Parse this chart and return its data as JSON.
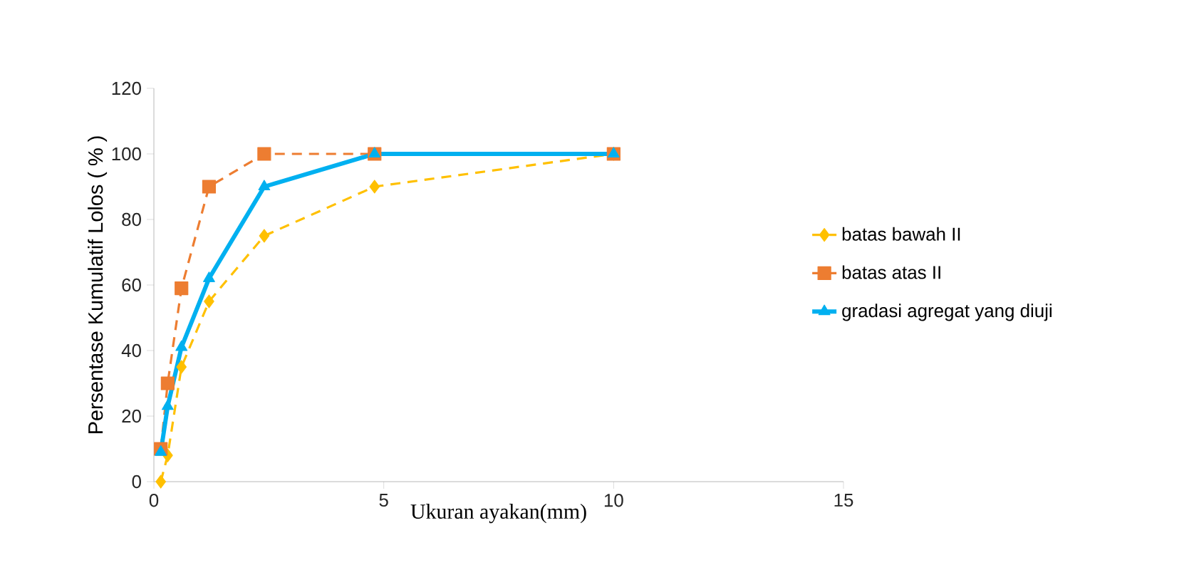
{
  "chart_data": {
    "type": "line",
    "xlabel": "Ukuran ayakan(mm)",
    "ylabel": "Persentase Kumulatif Lolos ( % )",
    "xlim": [
      0,
      15
    ],
    "xticks": [
      0,
      5,
      10,
      15
    ],
    "ylim": [
      0,
      120
    ],
    "yticks": [
      0,
      20,
      40,
      60,
      80,
      100,
      120
    ],
    "grid": false,
    "legend": "right",
    "series": [
      {
        "name": "batas bawah II",
        "color": "#ffc000",
        "marker": "diamond",
        "line_style": "dashed",
        "x": [
          0.15,
          0.3,
          0.6,
          1.2,
          2.4,
          4.8,
          10
        ],
        "values": [
          0,
          8,
          35,
          55,
          75,
          90,
          100
        ]
      },
      {
        "name": "batas atas II",
        "color": "#ed7d31",
        "marker": "square",
        "line_style": "dashed",
        "x": [
          0.15,
          0.3,
          0.6,
          1.2,
          2.4,
          4.8,
          10
        ],
        "values": [
          10,
          30,
          59,
          90,
          100,
          100,
          100
        ]
      },
      {
        "name": "gradasi agregat yang diuji",
        "color": "#00b0f0",
        "marker": "triangle",
        "line_style": "solid",
        "x": [
          0.15,
          0.3,
          0.6,
          1.2,
          2.4,
          4.8,
          10
        ],
        "values": [
          9,
          23,
          41,
          62,
          90,
          100,
          100
        ]
      }
    ]
  }
}
